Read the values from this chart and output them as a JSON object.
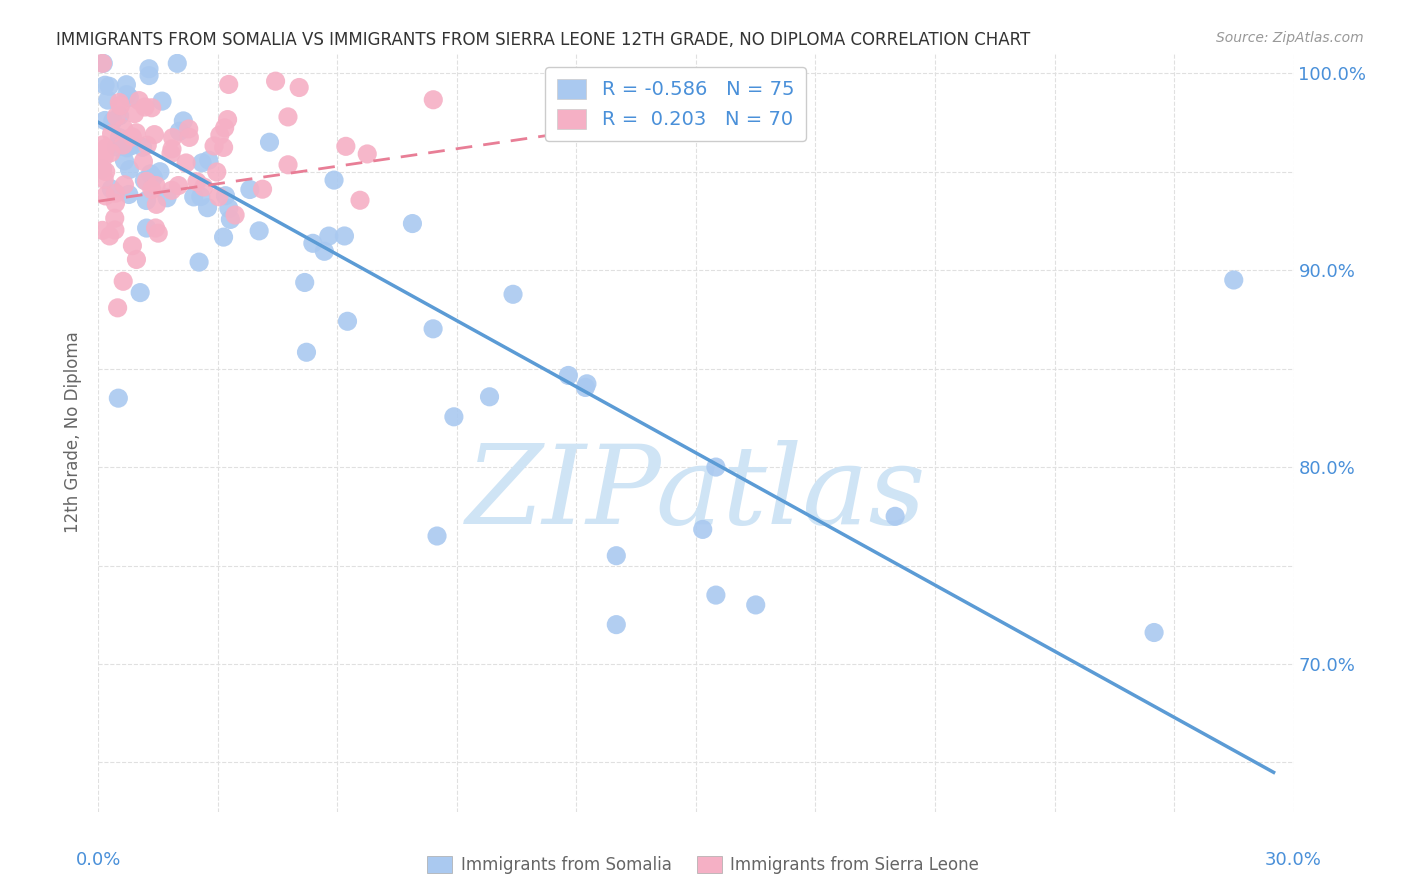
{
  "title": "IMMIGRANTS FROM SOMALIA VS IMMIGRANTS FROM SIERRA LEONE 12TH GRADE, NO DIPLOMA CORRELATION CHART",
  "source": "Source: ZipAtlas.com",
  "ylabel": "12th Grade, No Diploma",
  "soma_R": "-0.586",
  "soma_N": "75",
  "sierra_R": "0.203",
  "sierra_N": "70",
  "soma_color": "#aac9f0",
  "sierra_color": "#f5b0c5",
  "soma_line_color": "#5b9bd5",
  "sierra_line_color": "#e87e96",
  "soma_line_x0": 0.0,
  "soma_line_x1": 0.295,
  "soma_line_y0": 0.975,
  "soma_line_y1": 0.645,
  "sierra_line_x0": 0.0,
  "sierra_line_x1": 0.135,
  "sierra_line_y0": 0.935,
  "sierra_line_y1": 0.975,
  "xlim": [
    0.0,
    0.3
  ],
  "ylim": [
    0.625,
    1.01
  ],
  "ytick_positions": [
    0.65,
    0.7,
    0.75,
    0.8,
    0.85,
    0.9,
    0.95,
    1.0
  ],
  "ytick_labels_right": [
    "",
    "70.0%",
    "",
    "80.0%",
    "",
    "90.0%",
    "",
    "100.0%"
  ],
  "xtick_positions": [
    0.0,
    0.03,
    0.06,
    0.09,
    0.12,
    0.15,
    0.18,
    0.21,
    0.24,
    0.27,
    0.3
  ],
  "watermark": "ZIPatlas",
  "watermark_color": "#cfe4f5",
  "background_color": "#ffffff",
  "grid_color": "#e0e0e0",
  "text_color_blue": "#4a90d9",
  "text_color_gray": "#666666",
  "title_color": "#333333",
  "source_color": "#999999"
}
